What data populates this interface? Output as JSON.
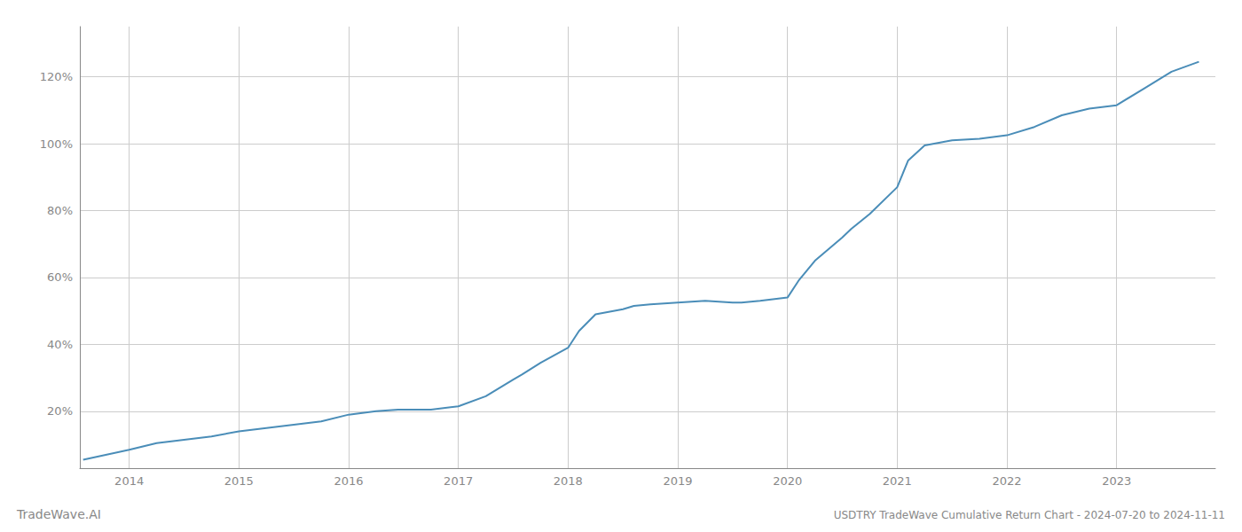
{
  "chart_data": {
    "type": "line",
    "title": "USDTRY TradeWave Cumulative Return Chart - 2024-07-20 to 2024-11-11",
    "annotations": [
      "TradeWave.AI"
    ],
    "x": [
      2013.58,
      2014.0,
      2014.25,
      2014.5,
      2014.75,
      2015.0,
      2015.25,
      2015.5,
      2015.75,
      2016.0,
      2016.25,
      2016.45,
      2016.6,
      2016.75,
      2017.0,
      2017.25,
      2017.5,
      2017.58,
      2017.75,
      2018.0,
      2018.1,
      2018.25,
      2018.5,
      2018.6,
      2018.75,
      2019.0,
      2019.25,
      2019.5,
      2019.58,
      2019.75,
      2020.0,
      2020.1,
      2020.25,
      2020.5,
      2020.58,
      2020.75,
      2021.0,
      2021.1,
      2021.25,
      2021.5,
      2021.75,
      2022.0,
      2022.25,
      2022.5,
      2022.75,
      2023.0,
      2023.25,
      2023.5,
      2023.75
    ],
    "values": [
      5.5,
      8.5,
      10.5,
      11.5,
      12.5,
      14.0,
      15.0,
      16.0,
      17.0,
      19.0,
      20.0,
      20.5,
      20.5,
      20.5,
      21.5,
      24.5,
      29.5,
      31.0,
      34.5,
      39.0,
      44.0,
      49.0,
      50.5,
      51.5,
      52.0,
      52.5,
      53.0,
      52.5,
      52.5,
      53.0,
      54.0,
      59.0,
      65.0,
      72.0,
      74.5,
      79.0,
      87.0,
      95.0,
      99.5,
      101.0,
      101.5,
      102.5,
      105.0,
      108.5,
      110.5,
      111.5,
      116.5,
      121.5,
      124.5
    ],
    "color": "#4a8db8",
    "xlim": [
      2013.55,
      2023.9
    ],
    "ylim": [
      3,
      135
    ],
    "xticks": [
      2014,
      2015,
      2016,
      2017,
      2018,
      2019,
      2020,
      2021,
      2022,
      2023
    ],
    "yticks": [
      {
        "value": 20,
        "label": "20%"
      },
      {
        "value": 40,
        "label": "40%"
      },
      {
        "value": 60,
        "label": "60%"
      },
      {
        "value": 80,
        "label": "80%"
      },
      {
        "value": 100,
        "label": "100%"
      },
      {
        "value": 120,
        "label": "120%"
      }
    ],
    "grid": true
  }
}
